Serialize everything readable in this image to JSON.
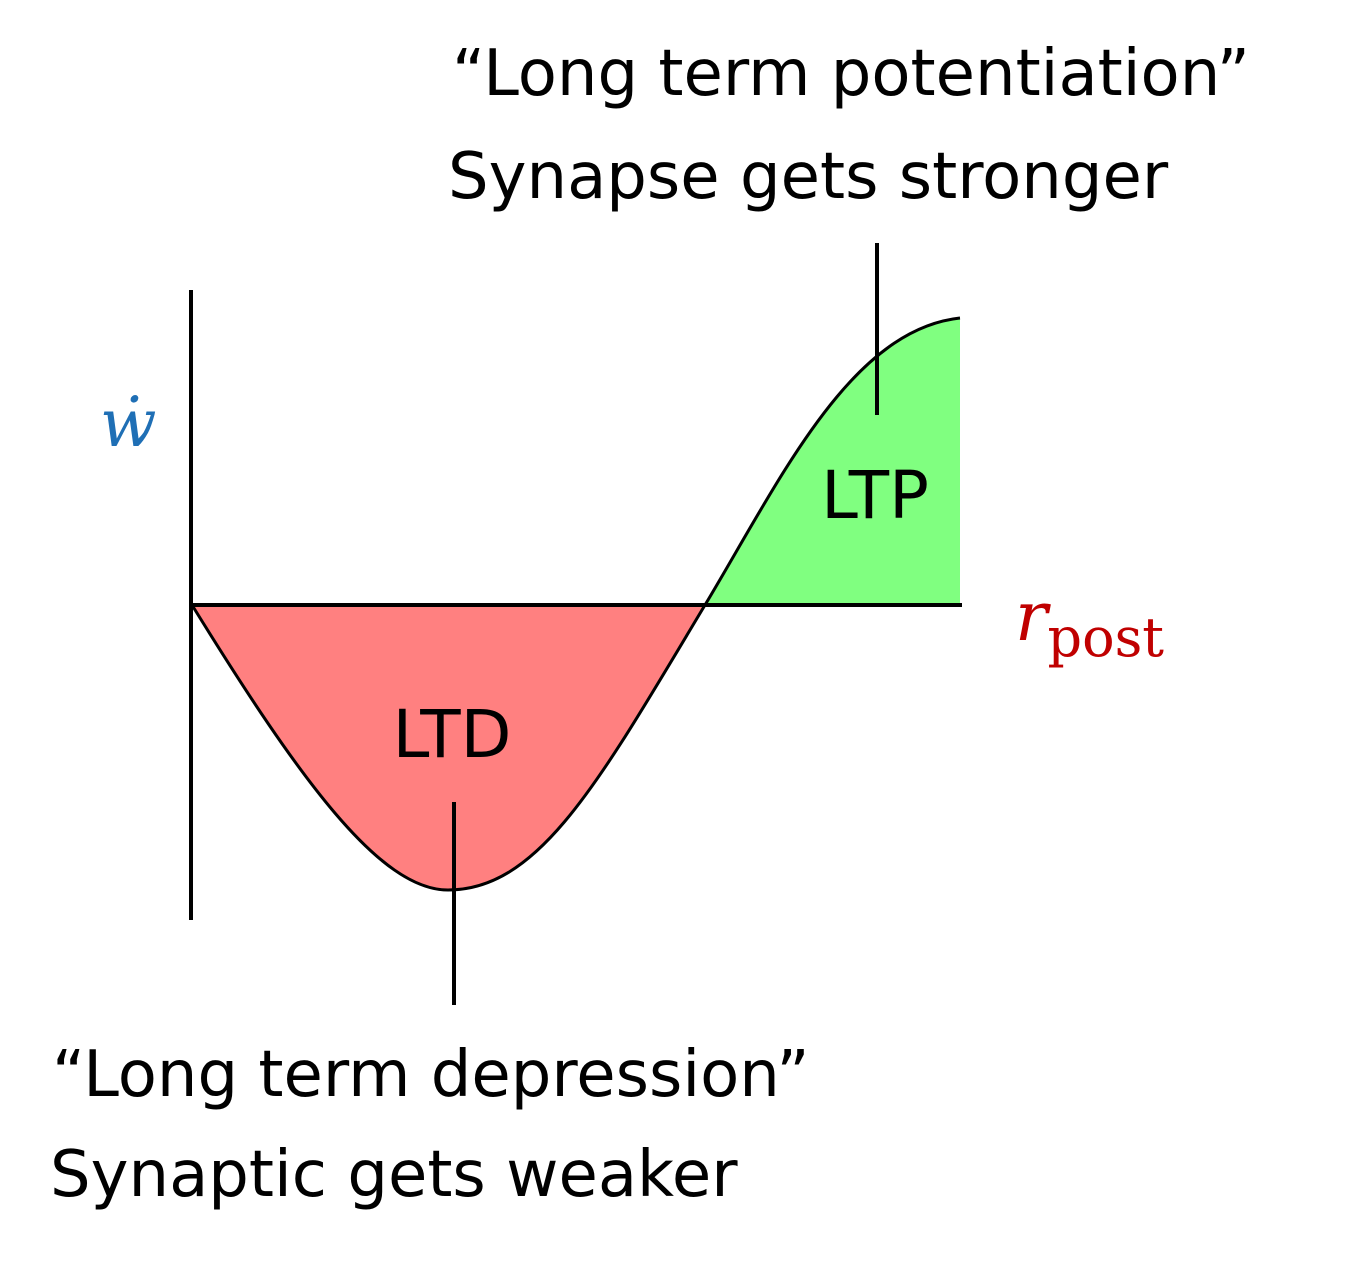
{
  "annotations": {
    "ltp_title": "“Long term potentiation”",
    "ltp_description": "Synapse gets stronger",
    "ltd_title": "“Long term depression”",
    "ltd_description": "Synaptic gets weaker"
  },
  "regions": {
    "ltp_label": "LTP",
    "ltd_label": "LTD"
  },
  "axes": {
    "y_label": "ẇ",
    "x_label_main": "r",
    "x_label_sub": "post"
  },
  "colors": {
    "ltp_fill": "#80ff80",
    "ltd_fill": "#ff8080",
    "y_label": "#1f6fb5",
    "x_label": "#c00000",
    "line": "#000000"
  }
}
